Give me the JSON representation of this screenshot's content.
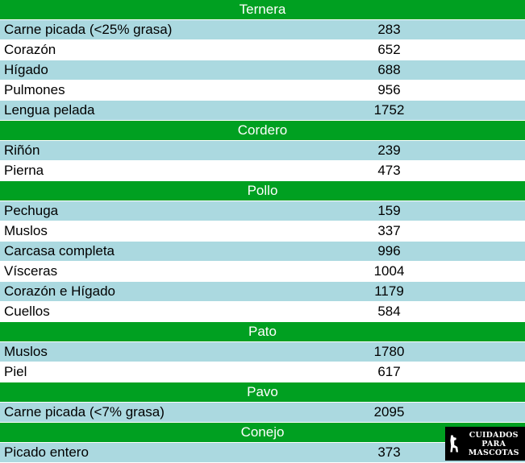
{
  "sections": [
    {
      "title": "Ternera",
      "items": [
        {
          "name": "Carne picada (<25% grasa)",
          "value": "283"
        },
        {
          "name": "Corazón",
          "value": "652"
        },
        {
          "name": "Hígado",
          "value": "688"
        },
        {
          "name": "Pulmones",
          "value": "956"
        },
        {
          "name": "Lengua pelada",
          "value": "1752"
        }
      ]
    },
    {
      "title": "Cordero",
      "items": [
        {
          "name": "Riñón",
          "value": "239"
        },
        {
          "name": "Pierna",
          "value": "473"
        }
      ]
    },
    {
      "title": "Pollo",
      "items": [
        {
          "name": "Pechuga",
          "value": "159"
        },
        {
          "name": "Muslos",
          "value": "337"
        },
        {
          "name": "Carcasa completa",
          "value": "996"
        },
        {
          "name": "Vísceras",
          "value": "1004"
        },
        {
          "name": "Corazón e Hígado",
          "value": "1179"
        },
        {
          "name": "Cuellos",
          "value": "584"
        }
      ]
    },
    {
      "title": "Pato",
      "items": [
        {
          "name": "Muslos",
          "value": "1780"
        },
        {
          "name": "Piel",
          "value": "617"
        }
      ]
    },
    {
      "title": "Pavo",
      "items": [
        {
          "name": "Carne picada (<7% grasa)",
          "value": "2095"
        }
      ]
    },
    {
      "title": "Conejo",
      "items": [
        {
          "name": "Picado entero",
          "value": "373"
        }
      ]
    }
  ],
  "watermark": {
    "line1": "CUIDADOS",
    "line2": "PARA MASCOTAS",
    "icon": "dog-silhouette-icon"
  },
  "colors": {
    "header": "#00a021",
    "row_odd": "#abd9e0",
    "row_even": "#ffffff"
  }
}
